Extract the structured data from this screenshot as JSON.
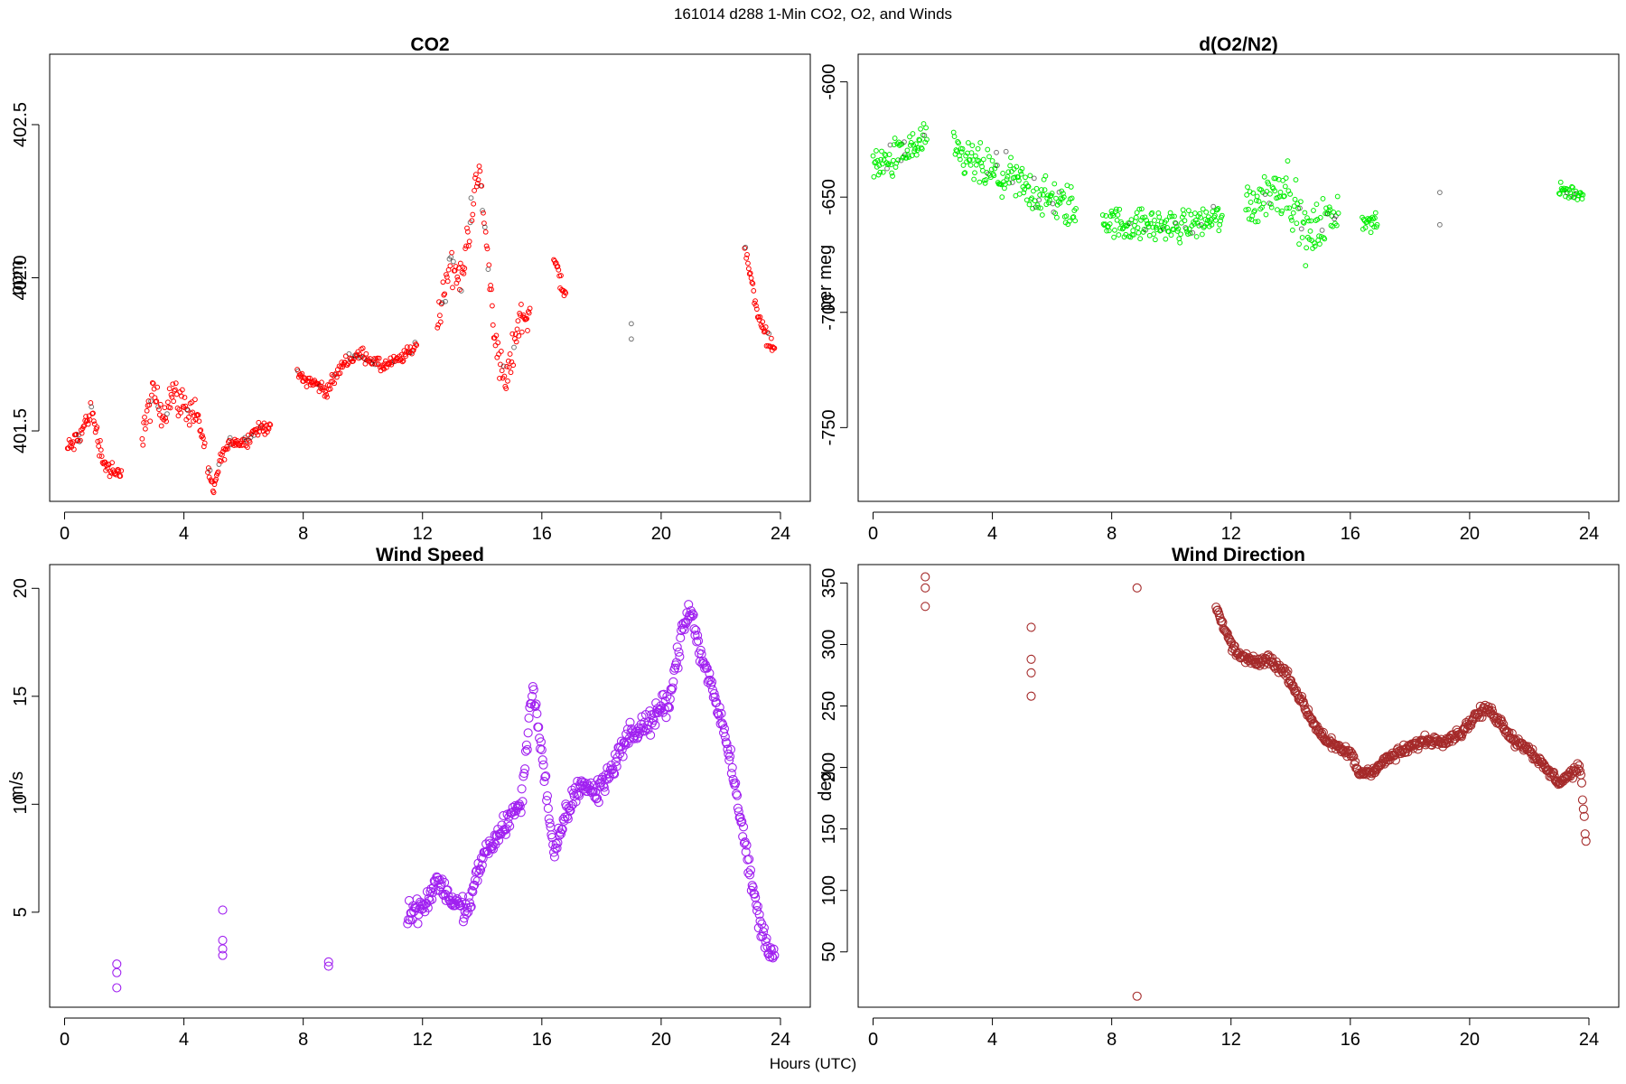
{
  "header": {
    "title": "161014   d288   1-Min CO2, O2, and Winds"
  },
  "footer": {
    "xlabel": "Hours (UTC)"
  },
  "chart_data": [
    {
      "type": "scatter",
      "title": "CO2",
      "xlabel": "Hours (UTC)",
      "ylabel": "ppm",
      "xlim": [
        -0.5,
        25.0
      ],
      "ylim": [
        401.27,
        402.73
      ],
      "xticks": [
        0,
        4,
        8,
        12,
        16,
        20,
        24
      ],
      "yticks": [
        401.5,
        402.0,
        402.5
      ],
      "ytick_labels": [
        "401.5",
        "402.0",
        "402.5"
      ],
      "color": "#ff0000",
      "marker": "open-circle-small",
      "grid": false,
      "segments": [
        {
          "x": [
            0.1,
            0.5,
            0.9,
            1.3,
            1.7,
            1.9
          ],
          "y": [
            401.44,
            401.48,
            401.57,
            401.4,
            401.35,
            401.37
          ],
          "jitter": 0.05
        },
        {
          "x": [
            2.6,
            3.0,
            3.3,
            3.6,
            4.0,
            4.4,
            4.7
          ],
          "y": [
            401.5,
            401.62,
            401.55,
            401.63,
            401.58,
            401.56,
            401.46
          ],
          "jitter": 0.08
        },
        {
          "x": [
            4.8,
            5.0,
            5.2,
            5.6,
            6.0,
            6.4,
            6.9
          ],
          "y": [
            401.37,
            401.3,
            401.4,
            401.47,
            401.46,
            401.5,
            401.52
          ],
          "jitter": 0.03
        },
        {
          "x": [
            7.8,
            8.3,
            8.8,
            9.4,
            10.0,
            10.6,
            11.2,
            11.8
          ],
          "y": [
            401.68,
            401.66,
            401.63,
            401.73,
            401.75,
            401.71,
            401.73,
            401.78
          ],
          "jitter": 0.03
        },
        {
          "x": [
            12.5,
            12.9,
            13.3,
            13.6,
            13.9,
            14.2,
            14.5,
            14.8,
            15.2,
            15.6
          ],
          "y": [
            401.85,
            402.05,
            401.98,
            402.2,
            402.35,
            402.05,
            401.75,
            401.65,
            401.85,
            401.9
          ],
          "jitter": 0.09
        },
        {
          "x": [
            16.4,
            16.8
          ],
          "y": [
            402.05,
            401.95
          ],
          "jitter": 0.06
        },
        {
          "x": [
            19.0,
            19.0
          ],
          "y": [
            401.85,
            401.8
          ],
          "jitter": 0.0
        },
        {
          "x": [
            22.8,
            23.1,
            23.4,
            23.8
          ],
          "y": [
            402.1,
            401.95,
            401.83,
            401.77
          ],
          "jitter": 0.04
        }
      ]
    },
    {
      "type": "scatter",
      "title": "d(O2/N2)",
      "xlabel": "Hours (UTC)",
      "ylabel": "per meg",
      "xlim": [
        -0.5,
        25.0
      ],
      "ylim": [
        -782,
        -588
      ],
      "xticks": [
        0,
        4,
        8,
        12,
        16,
        20,
        24
      ],
      "yticks": [
        -750,
        -700,
        -650,
        -600
      ],
      "ytick_labels": [
        "-750",
        "-700",
        "-650",
        "-600"
      ],
      "color": "#00ee00",
      "marker": "open-circle-small",
      "grid": false,
      "segments": [
        {
          "x": [
            0.0,
            0.6,
            1.2,
            1.8
          ],
          "y": [
            -637,
            -634,
            -630,
            -625
          ],
          "jitter": 12
        },
        {
          "x": [
            2.7,
            3.3,
            4.0,
            4.7,
            5.4,
            6.0,
            6.8
          ],
          "y": [
            -632,
            -635,
            -640,
            -643,
            -648,
            -652,
            -655
          ],
          "jitter": 14
        },
        {
          "x": [
            7.7,
            8.5,
            9.3,
            10.1,
            10.9,
            11.7
          ],
          "y": [
            -660,
            -662,
            -662,
            -663,
            -661,
            -658
          ],
          "jitter": 10
        },
        {
          "x": [
            12.5,
            13.2,
            13.9,
            14.5,
            15.0,
            15.6
          ],
          "y": [
            -655,
            -648,
            -645,
            -668,
            -662,
            -657
          ],
          "jitter": 16
        },
        {
          "x": [
            16.4,
            16.9
          ],
          "y": [
            -660,
            -662
          ],
          "jitter": 6
        },
        {
          "x": [
            19.0,
            19.0
          ],
          "y": [
            -648,
            -662
          ],
          "jitter": 0
        },
        {
          "x": [
            23.0,
            23.4,
            23.8
          ],
          "y": [
            -647,
            -648,
            -649
          ],
          "jitter": 5
        }
      ]
    },
    {
      "type": "scatter",
      "title": "Wind Speed",
      "xlabel": "Hours (UTC)",
      "ylabel": "m/s",
      "xlim": [
        -0.5,
        25.0
      ],
      "ylim": [
        0.6,
        21.1
      ],
      "xticks": [
        0,
        4,
        8,
        12,
        16,
        20,
        24
      ],
      "yticks": [
        5,
        10,
        15,
        20
      ],
      "ytick_labels": [
        "5",
        "10",
        "15",
        "20"
      ],
      "color": "#a020f0",
      "marker": "open-circle",
      "grid": false,
      "isolated": {
        "x": [
          1.75,
          1.75,
          1.75,
          5.3,
          5.3,
          5.3,
          5.3,
          8.85,
          8.85
        ],
        "y": [
          2.6,
          2.2,
          1.5,
          5.1,
          3.7,
          3.3,
          3.0,
          2.7,
          2.5
        ]
      },
      "segments": [
        {
          "x": [
            11.5,
            12.0,
            12.5,
            13.0,
            13.5,
            14.0,
            14.5,
            15.0,
            15.3,
            15.7,
            16.0,
            16.4,
            16.8,
            17.3,
            17.8,
            18.3,
            18.8,
            19.3,
            19.8,
            20.3,
            20.7,
            21.0,
            21.3,
            21.7,
            22.2,
            22.6,
            23.0,
            23.4,
            23.8
          ],
          "y": [
            5.0,
            5.2,
            6.5,
            5.5,
            5.0,
            7.5,
            8.5,
            9.5,
            10.0,
            15.5,
            12.5,
            7.5,
            9.5,
            11.0,
            10.5,
            11.5,
            13.0,
            13.5,
            14.0,
            15.0,
            18.0,
            19.0,
            17.0,
            15.5,
            13.0,
            10.0,
            6.5,
            4.0,
            3.0
          ],
          "jitter": 0.8
        }
      ]
    },
    {
      "type": "scatter",
      "title": "Wind Direction",
      "xlabel": "Hours (UTC)",
      "ylabel": "deg",
      "xlim": [
        -0.5,
        25.0
      ],
      "ylim": [
        5,
        365
      ],
      "xticks": [
        0,
        4,
        8,
        12,
        16,
        20,
        24
      ],
      "yticks": [
        50,
        100,
        150,
        200,
        250,
        300,
        350
      ],
      "ytick_labels": [
        "50",
        "100",
        "150",
        "200",
        "250",
        "300",
        "350"
      ],
      "color": "#a52a2a",
      "marker": "open-circle",
      "grid": false,
      "isolated": {
        "x": [
          1.75,
          1.75,
          1.75,
          5.3,
          5.3,
          5.3,
          5.3,
          8.85,
          8.85
        ],
        "y": [
          355,
          346,
          331,
          314,
          288,
          277,
          258,
          346,
          14
        ]
      },
      "segments": [
        {
          "x": [
            11.5,
            11.8,
            12.2,
            12.8,
            13.3,
            13.9,
            14.4,
            14.8,
            15.2,
            15.6,
            16.0,
            16.3,
            16.8,
            17.3,
            17.9,
            18.5,
            19.1,
            19.7,
            20.2,
            20.6,
            21.0,
            21.5,
            22.0,
            22.5,
            23.0,
            23.4,
            23.7,
            23.9
          ],
          "y": [
            330,
            310,
            292,
            285,
            288,
            275,
            252,
            235,
            222,
            215,
            212,
            195,
            198,
            208,
            215,
            222,
            222,
            228,
            242,
            248,
            238,
            222,
            215,
            200,
            188,
            195,
            200,
            140
          ],
          "jitter": 6
        }
      ]
    }
  ]
}
